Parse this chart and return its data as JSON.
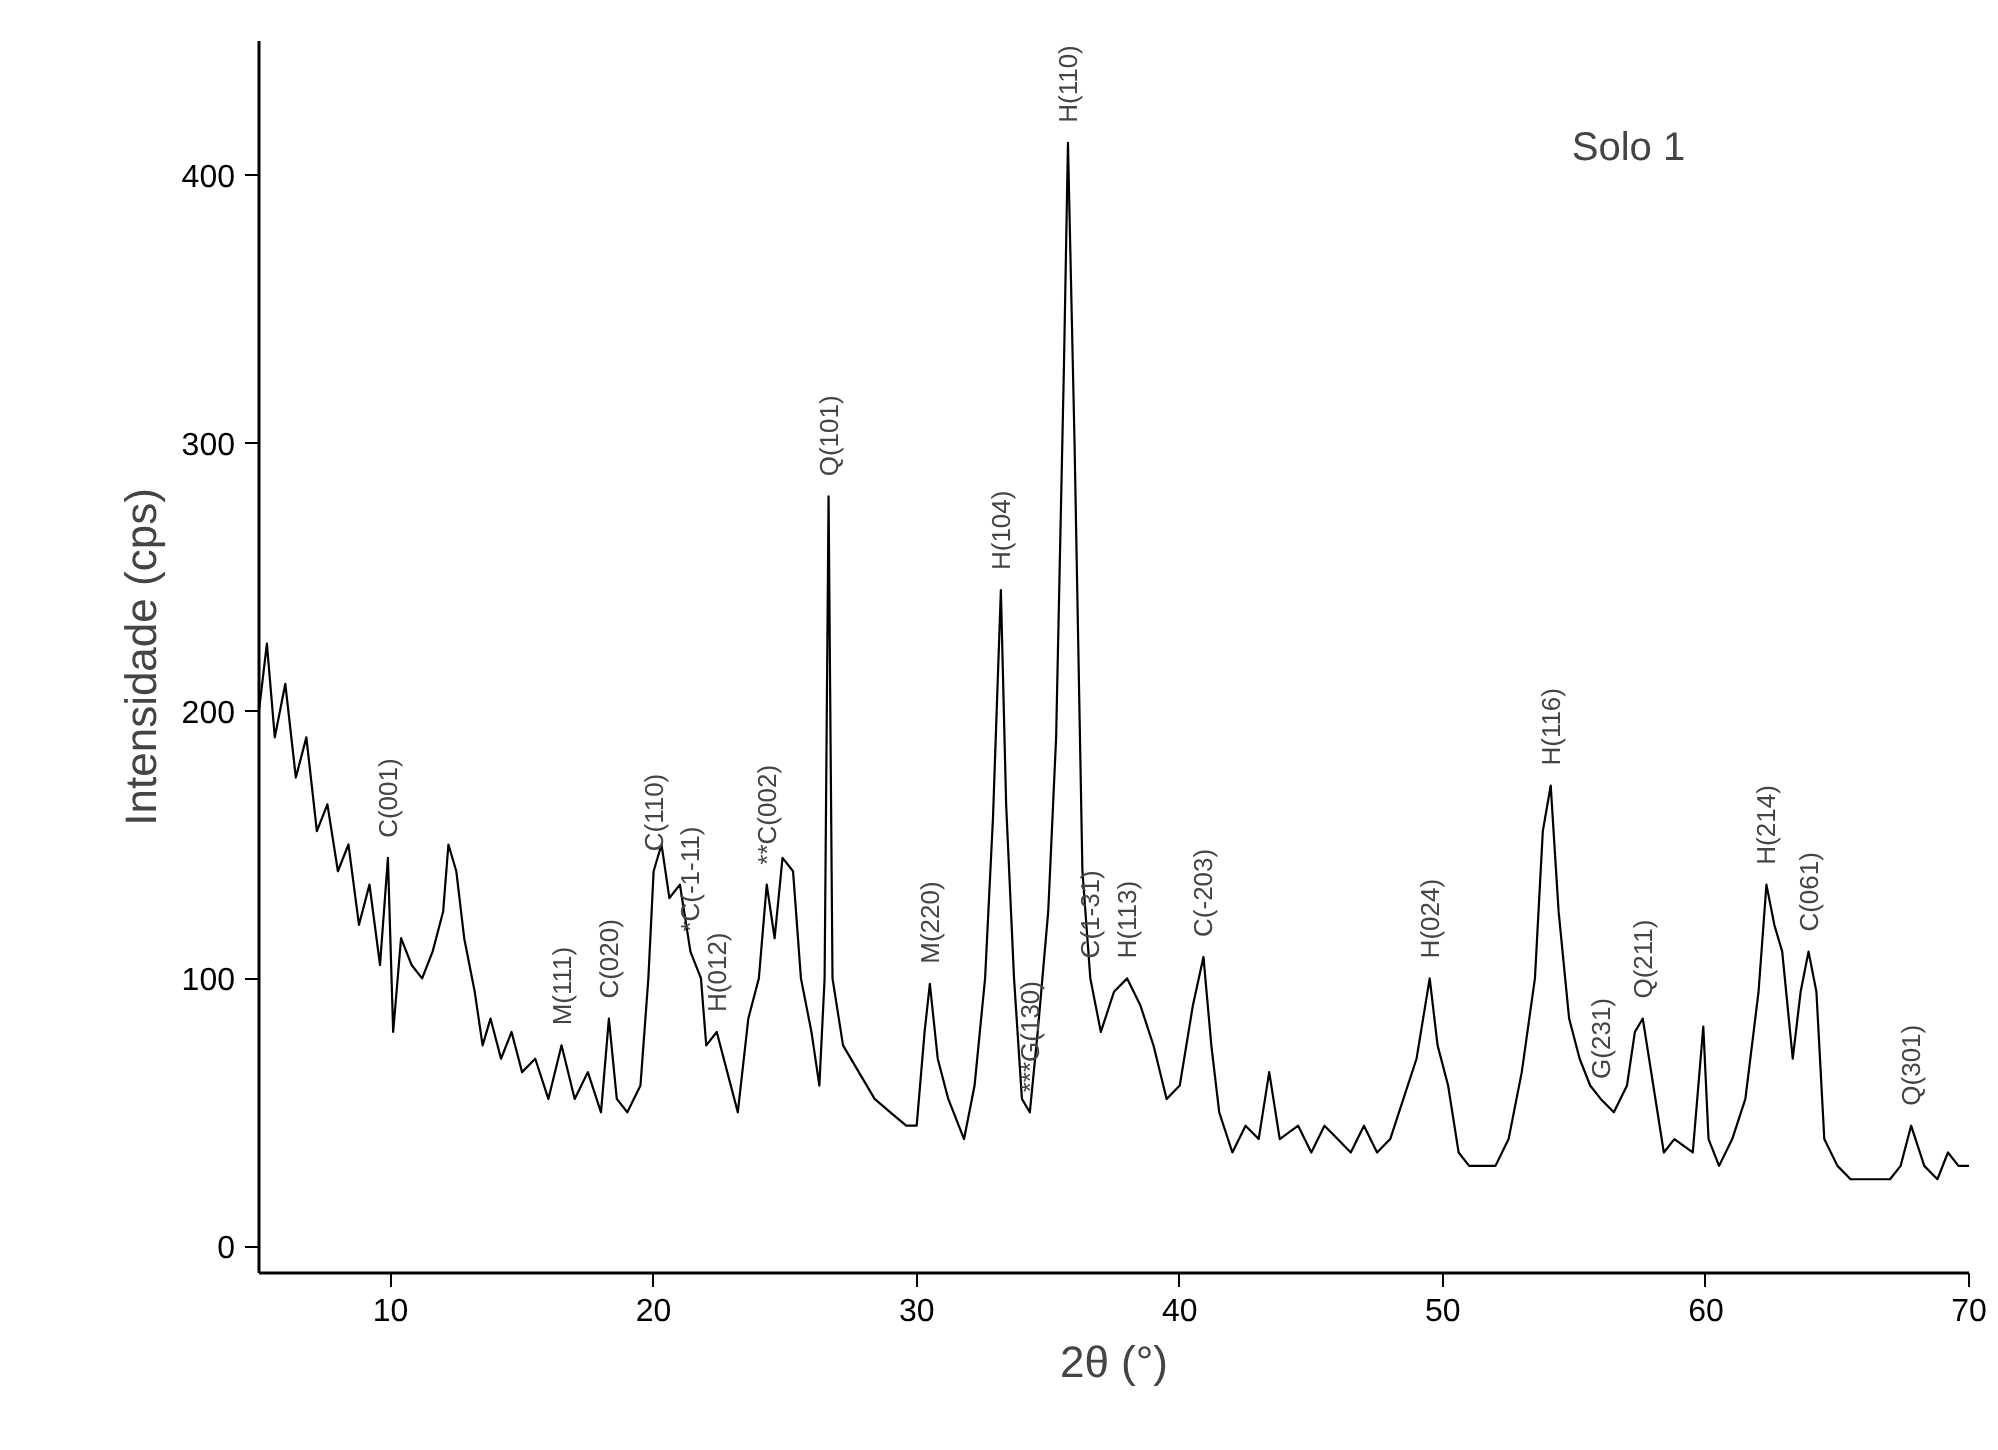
{
  "chart_data": {
    "type": "line",
    "title": "Solo 1",
    "xlabel": "2θ (°)",
    "ylabel": "Intensidade (cps)",
    "xlim": [
      5,
      70
    ],
    "ylim": [
      -10,
      450
    ],
    "xticks": [
      10,
      20,
      30,
      40,
      50,
      60,
      70
    ],
    "yticks": [
      0,
      100,
      200,
      300,
      400
    ],
    "line_style": "solid",
    "marker": "none",
    "series": [
      {
        "color": "#000000",
        "x": [
          5.0,
          5.3,
          5.6,
          6.0,
          6.4,
          6.8,
          7.2,
          7.6,
          8.0,
          8.4,
          8.8,
          9.2,
          9.6,
          9.9,
          10.1,
          10.4,
          10.8,
          11.2,
          11.6,
          12.0,
          12.2,
          12.5,
          12.8,
          13.2,
          13.5,
          13.8,
          14.2,
          14.6,
          15.0,
          15.5,
          16.0,
          16.5,
          17.0,
          17.5,
          18.0,
          18.3,
          18.6,
          19.0,
          19.5,
          19.8,
          20.0,
          20.3,
          20.6,
          21.0,
          21.4,
          21.8,
          22.0,
          22.4,
          22.8,
          23.2,
          23.6,
          24.0,
          24.3,
          24.6,
          24.9,
          25.3,
          25.6,
          26.0,
          26.3,
          26.5,
          26.65,
          26.8,
          27.2,
          27.8,
          28.4,
          29.0,
          29.6,
          30.0,
          30.3,
          30.5,
          30.8,
          31.2,
          31.8,
          32.2,
          32.6,
          32.9,
          33.2,
          33.4,
          33.7,
          34.0,
          34.3,
          34.6,
          35.0,
          35.3,
          35.6,
          35.75,
          36.0,
          36.3,
          36.6,
          37.0,
          37.5,
          38.0,
          38.5,
          39.0,
          39.5,
          40.0,
          40.5,
          40.9,
          41.2,
          41.5,
          42.0,
          42.5,
          43.0,
          43.4,
          43.8,
          44.5,
          45.0,
          45.5,
          46.0,
          46.5,
          47.0,
          47.5,
          48.0,
          48.5,
          49.0,
          49.5,
          49.8,
          50.2,
          50.6,
          51.0,
          51.5,
          52.0,
          52.5,
          53.0,
          53.5,
          53.8,
          54.1,
          54.4,
          54.8,
          55.2,
          55.6,
          56.0,
          56.5,
          57.0,
          57.3,
          57.6,
          58.0,
          58.4,
          58.8,
          59.5,
          59.9,
          60.1,
          60.5,
          61.0,
          61.5,
          62.0,
          62.3,
          62.6,
          62.9,
          63.3,
          63.6,
          63.9,
          64.2,
          64.5,
          65.0,
          65.5,
          66.0,
          66.5,
          67.0,
          67.4,
          67.8,
          68.3,
          68.8,
          69.2,
          69.6,
          70.0
        ],
        "values": [
          200,
          225,
          190,
          210,
          175,
          190,
          155,
          165,
          140,
          150,
          120,
          135,
          105,
          145,
          80,
          115,
          105,
          100,
          110,
          125,
          150,
          140,
          115,
          95,
          75,
          85,
          70,
          80,
          65,
          70,
          55,
          75,
          55,
          65,
          50,
          85,
          55,
          50,
          60,
          100,
          140,
          150,
          130,
          135,
          110,
          100,
          75,
          80,
          65,
          50,
          85,
          100,
          135,
          115,
          145,
          140,
          100,
          80,
          60,
          100,
          280,
          100,
          75,
          65,
          55,
          50,
          45,
          45,
          80,
          98,
          70,
          55,
          40,
          60,
          100,
          160,
          245,
          165,
          100,
          55,
          50,
          80,
          125,
          190,
          330,
          412,
          300,
          140,
          100,
          80,
          95,
          100,
          90,
          75,
          55,
          60,
          90,
          108,
          75,
          50,
          35,
          45,
          40,
          65,
          40,
          45,
          35,
          45,
          40,
          35,
          45,
          35,
          40,
          55,
          70,
          100,
          75,
          60,
          35,
          30,
          30,
          30,
          40,
          65,
          100,
          155,
          172,
          125,
          85,
          70,
          60,
          55,
          50,
          60,
          80,
          85,
          60,
          35,
          40,
          35,
          82,
          40,
          30,
          40,
          55,
          95,
          135,
          120,
          110,
          70,
          95,
          110,
          95,
          40,
          30,
          25,
          25,
          25,
          25,
          30,
          45,
          30,
          25,
          35,
          30,
          30
        ]
      }
    ],
    "annotations": [
      {
        "text": "C(001)",
        "x": 9.9,
        "y": 145
      },
      {
        "text": "M(111)",
        "x": 16.5,
        "y": 75
      },
      {
        "text": "C(020)",
        "x": 18.3,
        "y": 85
      },
      {
        "text": "*C(-1-11)",
        "x": 21.4,
        "y": 110
      },
      {
        "text": "C(110)",
        "x": 20.0,
        "y": 140
      },
      {
        "text": "H(012)",
        "x": 22.4,
        "y": 80
      },
      {
        "text": "**C(002)",
        "x": 24.3,
        "y": 135
      },
      {
        "text": "Q(101)",
        "x": 26.65,
        "y": 280
      },
      {
        "text": "M(220)",
        "x": 30.5,
        "y": 98
      },
      {
        "text": "H(104)",
        "x": 33.2,
        "y": 245
      },
      {
        "text": "***G(130)",
        "x": 34.3,
        "y": 50
      },
      {
        "text": "H(110)",
        "x": 35.75,
        "y": 412
      },
      {
        "text": "C(1-31)",
        "x": 36.6,
        "y": 100
      },
      {
        "text": "H(113)",
        "x": 38.0,
        "y": 100
      },
      {
        "text": "C(-203)",
        "x": 40.9,
        "y": 108
      },
      {
        "text": "H(024)",
        "x": 49.5,
        "y": 100
      },
      {
        "text": "H(116)",
        "x": 54.1,
        "y": 172
      },
      {
        "text": "G(231)",
        "x": 56.0,
        "y": 55
      },
      {
        "text": "Q(211)",
        "x": 57.6,
        "y": 85
      },
      {
        "text": "H(214)",
        "x": 62.3,
        "y": 135
      },
      {
        "text": "C(061)",
        "x": 63.9,
        "y": 110
      },
      {
        "text": "Q(301)",
        "x": 67.8,
        "y": 45
      }
    ]
  }
}
